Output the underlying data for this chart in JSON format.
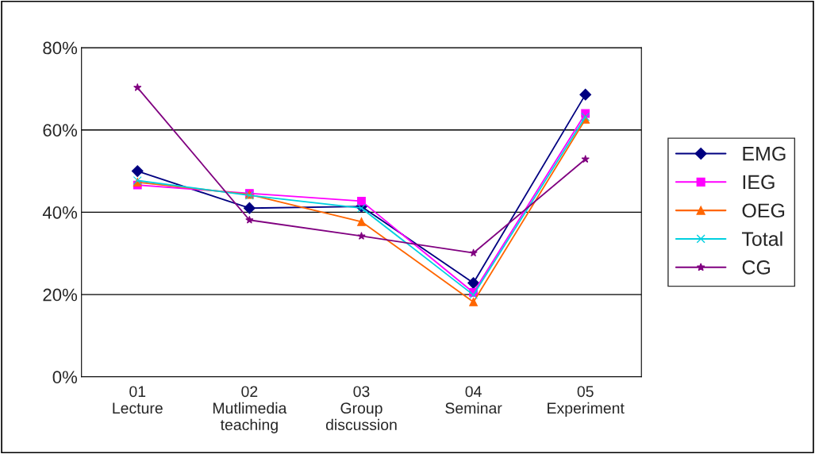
{
  "chart_data": {
    "type": "line",
    "categories": [
      "01\nLecture",
      "02\nMutlimedia\nteaching",
      "03\nGroup\ndiscussion",
      "04\nSeminar",
      "05\nExperiment"
    ],
    "series": [
      {
        "name": "EMG",
        "color": "#000080",
        "marker": "diamond",
        "values": [
          50.0,
          41.0,
          41.4,
          22.8,
          68.6
        ]
      },
      {
        "name": "IEG",
        "color": "#ff00ff",
        "marker": "square",
        "values": [
          46.6,
          44.6,
          42.7,
          20.5,
          64.0
        ]
      },
      {
        "name": "OEG",
        "color": "#ff6600",
        "marker": "triangle",
        "values": [
          47.3,
          44.3,
          37.7,
          18.2,
          62.6
        ]
      },
      {
        "name": "Total",
        "color": "#00d0e0",
        "marker": "cross",
        "values": [
          47.7,
          44.1,
          41.0,
          19.9,
          63.2
        ]
      },
      {
        "name": "CG",
        "color": "#800080",
        "marker": "star",
        "values": [
          70.3,
          38.1,
          34.2,
          30.1,
          52.9
        ]
      }
    ],
    "ylim": [
      0,
      80
    ],
    "yticks": [
      {
        "value": 0,
        "label": "0%"
      },
      {
        "value": 20,
        "label": "20%"
      },
      {
        "value": 40,
        "label": "40%"
      },
      {
        "value": 60,
        "label": "60%"
      },
      {
        "value": 80,
        "label": "80%"
      }
    ],
    "grid": "y",
    "legend": "right",
    "line_style": "solid"
  }
}
